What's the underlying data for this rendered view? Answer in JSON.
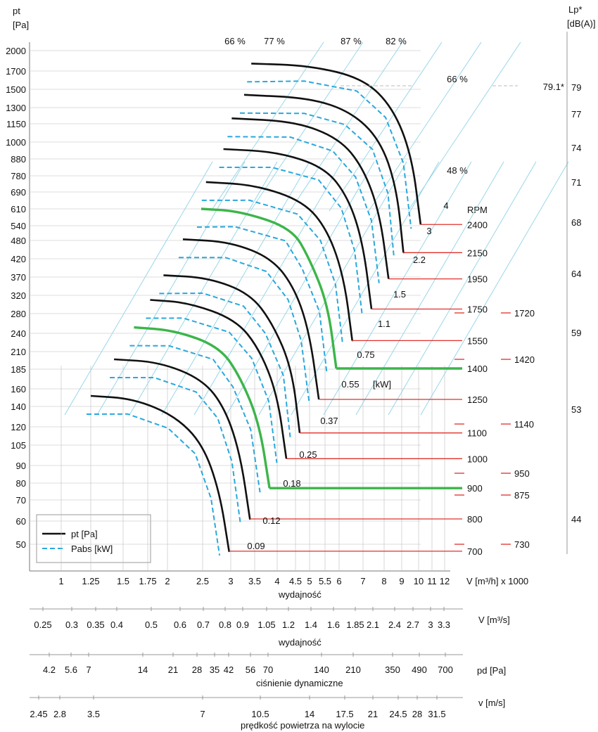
{
  "chart_data": {
    "type": "line",
    "y_axis": {
      "label_1": "pt",
      "label_2": "[Pa]",
      "ticks": [
        2000,
        1700,
        1500,
        1300,
        1150,
        1000,
        880,
        780,
        690,
        610,
        540,
        480,
        420,
        370,
        320,
        280,
        240,
        210,
        185,
        160,
        140,
        120,
        105,
        90,
        80,
        70,
        60,
        50
      ]
    },
    "x_axis": {
      "label": "wydajność",
      "unit": "V [m³/h]  x 1000",
      "ticks": [
        "1",
        "1.25",
        "1.5",
        "1.75",
        "2",
        "2.5",
        "3",
        "3.5",
        "4",
        "4.5",
        "5",
        "5.5",
        "6",
        "7",
        "8",
        "9",
        "10",
        "11",
        "12"
      ],
      "ticks_numeric": [
        1,
        1.25,
        1.5,
        1.75,
        2,
        2.5,
        3,
        3.5,
        4,
        4.5,
        5,
        5.5,
        6,
        7,
        8,
        9,
        10,
        11,
        12
      ]
    },
    "lp_axis": {
      "label_1": "Lp*",
      "label_2": "[dB(A)]",
      "ticks": [
        79,
        77,
        74,
        71,
        68,
        64,
        59,
        53,
        44
      ],
      "marker": "79.1*"
    },
    "efficiency_labels": [
      "66 %",
      "77 %",
      "87 %",
      "82 %",
      "66 %",
      "48 %"
    ],
    "rpm": {
      "header": "RPM",
      "values": [
        2400,
        2150,
        1950,
        1750,
        1550,
        1400,
        1250,
        1100,
        1000,
        900,
        800,
        700
      ],
      "secondary": [
        "1720",
        "1420",
        "1140",
        "950",
        "875",
        "730"
      ]
    },
    "power_labels": [
      "4",
      "3",
      "2.2",
      "1.5",
      "1.1",
      "0.75",
      "0.55",
      "[kW]",
      "0.37",
      "0.25",
      "0.18",
      "0.12",
      "0.09"
    ],
    "legend": {
      "pt": "pt [Pa]",
      "pabs": "Pabs [kW]"
    },
    "series": [
      {
        "name": "pt [Pa]",
        "rpm": 2400,
        "x": [
          3.43,
          5.0,
          7.0,
          8.5,
          9.6,
          10.15
        ],
        "y": [
          1810,
          1780,
          1620,
          1300,
          900,
          545
        ]
      },
      {
        "name": "pt [Pa]",
        "rpm": 2150,
        "x": [
          3.28,
          5.0,
          6.5,
          7.8,
          8.7,
          9.1
        ],
        "y": [
          1440,
          1405,
          1260,
          1020,
          720,
          440
        ]
      },
      {
        "name": "pt [Pa]",
        "rpm": 1950,
        "x": [
          3.02,
          4.5,
          6.0,
          7.0,
          7.8,
          8.25
        ],
        "y": [
          1200,
          1170,
          1030,
          830,
          590,
          365
        ]
      },
      {
        "name": "pt [Pa]",
        "rpm": 1750,
        "x": [
          2.87,
          4.0,
          5.5,
          6.4,
          7.0,
          7.4
        ],
        "y": [
          950,
          930,
          830,
          660,
          470,
          290
        ]
      },
      {
        "name": "pt [Pa]",
        "rpm": 1550,
        "x": [
          2.56,
          3.5,
          4.8,
          5.6,
          6.2,
          6.55
        ],
        "y": [
          745,
          730,
          645,
          520,
          370,
          228
        ]
      },
      {
        "name": "pt [Pa]",
        "rpm": 1400,
        "x": [
          2.48,
          3.2,
          4.4,
          5.0,
          5.6,
          5.9
        ],
        "y": [
          610,
          600,
          530,
          420,
          300,
          186
        ]
      },
      {
        "name": "pt [Pa]",
        "rpm": 1250,
        "x": [
          2.22,
          3.0,
          3.9,
          4.5,
          5.0,
          5.3
        ],
        "y": [
          485,
          475,
          420,
          335,
          240,
          148
        ]
      },
      {
        "name": "pt [Pa]",
        "rpm": 1100,
        "x": [
          1.95,
          2.6,
          3.4,
          3.9,
          4.4,
          4.65
        ],
        "y": [
          375,
          368,
          325,
          260,
          186,
          115
        ]
      },
      {
        "name": "pt [Pa]",
        "rpm": 1000,
        "x": [
          1.78,
          2.3,
          3.1,
          3.6,
          4.0,
          4.25
        ],
        "y": [
          310,
          304,
          268,
          215,
          154,
          95
        ]
      },
      {
        "name": "pt [Pa]",
        "rpm": 900,
        "x": [
          1.61,
          2.1,
          2.8,
          3.2,
          3.6,
          3.83
        ],
        "y": [
          252,
          246,
          218,
          175,
          124,
          77
        ]
      },
      {
        "name": "pt [Pa]",
        "rpm": 800,
        "x": [
          1.43,
          1.9,
          2.5,
          2.9,
          3.2,
          3.4
        ],
        "y": [
          199,
          195,
          172,
          138,
          98,
          61
        ]
      },
      {
        "name": "pt [Pa]",
        "rpm": 700,
        "x": [
          1.25,
          1.6,
          2.1,
          2.5,
          2.8,
          2.97
        ],
        "y": [
          152,
          149,
          131,
          106,
          75,
          47
        ]
      }
    ],
    "highlighted_rpm": [
      1400,
      900
    ],
    "bottom_scales": [
      {
        "label": "V  [m³/s]",
        "title": "wydajność",
        "ticks": [
          "0.25",
          "0.3",
          "0.35",
          "0.4",
          "0.5",
          "0.6",
          "0.7",
          "0.8",
          "0.9",
          "1.05",
          "1.2",
          "1.4",
          "1.6",
          "1.85",
          "2.1",
          "2.4",
          "2.7",
          "3",
          "3.3"
        ]
      },
      {
        "label": "pd  [Pa]",
        "title": "ciśnienie dynamiczne",
        "ticks": [
          "4.2",
          "5.6",
          "7",
          "14",
          "21",
          "28",
          "35",
          "42",
          "56",
          "70",
          "140",
          "210",
          "350",
          "490",
          "700"
        ]
      },
      {
        "label": "v  [m/s]",
        "title": "prędkość powietrza na wylocie",
        "ticks": [
          "2.45",
          "2.8",
          "3.5",
          "7",
          "10.5",
          "14",
          "17.5",
          "21",
          "24.5",
          "28",
          "31.5"
        ]
      }
    ],
    "colors": {
      "pt_curve": "#111111",
      "pabs_curve": "#2aa8dc",
      "highlight": "#3cb54a",
      "rpm_line": "#e0302a",
      "grid": "#bdbdbd",
      "efficiency_line": "#8fd3e6"
    }
  }
}
